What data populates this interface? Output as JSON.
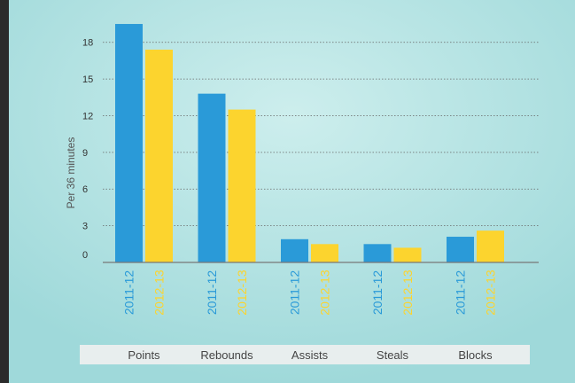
{
  "chart_data": {
    "type": "bar",
    "title": "",
    "xlabel": "",
    "ylabel": "Per 36 minutes",
    "ylim": [
      0,
      20.3
    ],
    "yticks": [
      0,
      3,
      6,
      9,
      12,
      15,
      18
    ],
    "grid": true,
    "categories": [
      "Points",
      "Rebounds",
      "Assists",
      "Steals",
      "Blocks"
    ],
    "series": [
      {
        "name": "2011-12",
        "color": "#2a9ad8",
        "values": [
          19.5,
          13.8,
          1.9,
          1.5,
          2.1
        ]
      },
      {
        "name": "2012-13",
        "color": "#fcd42e",
        "values": [
          17.4,
          12.5,
          1.5,
          1.2,
          2.6
        ]
      }
    ]
  }
}
